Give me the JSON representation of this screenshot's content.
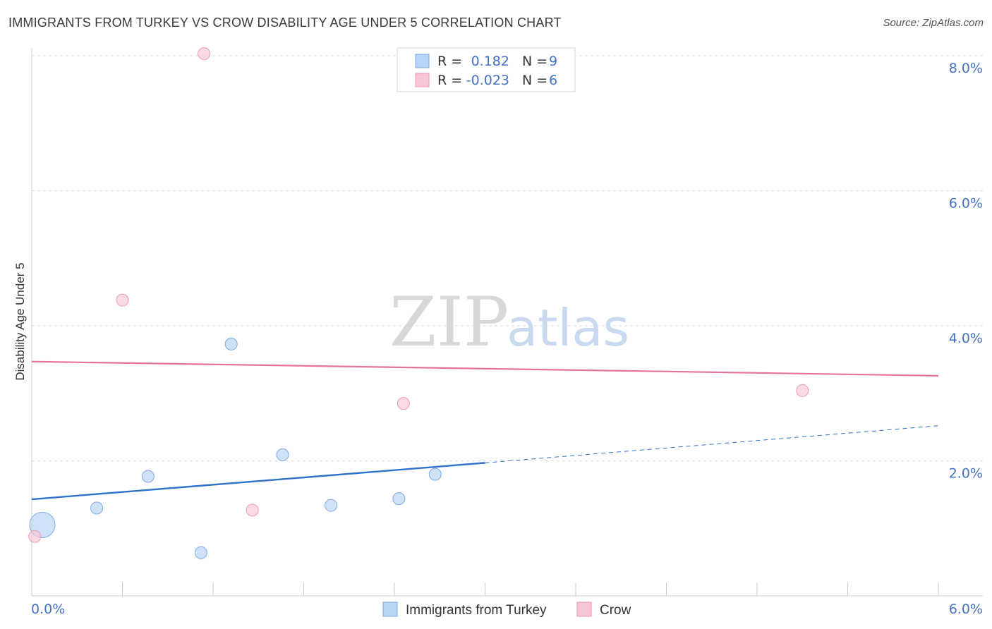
{
  "title": "IMMIGRANTS FROM TURKEY VS CROW DISABILITY AGE UNDER 5 CORRELATION CHART",
  "source": "Source: ZipAtlas.com",
  "watermark": {
    "zip": "ZIP",
    "atlas": "atlas"
  },
  "colors": {
    "blue_fill": "#b7d3f5",
    "blue_stroke": "#7fa9e0",
    "blue_line": "#2f72c9",
    "pink_fill": "#f8c7d6",
    "pink_stroke": "#ee9ab4",
    "pink_line": "#e8739a",
    "grid": "#dddddd",
    "tick_text": "#4472c4"
  },
  "legend": {
    "rows": [
      {
        "r_label": "R =",
        "r_value": "0.182",
        "n_label": "N =",
        "n_value": "9"
      },
      {
        "r_label": "R =",
        "r_value": "-0.023",
        "n_label": "N =",
        "n_value": "6"
      }
    ]
  },
  "bottom_legend": [
    "Immigrants from Turkey",
    "Crow"
  ],
  "chart_data": {
    "type": "scatter",
    "title": "IMMIGRANTS FROM TURKEY VS CROW DISABILITY AGE UNDER 5 CORRELATION CHART",
    "xlabel": "",
    "ylabel": "Disability Age Under 5",
    "xlim": [
      0,
      6
    ],
    "ylim": [
      0,
      8.3
    ],
    "x_tick_labels": [
      "0.0%",
      "6.0%"
    ],
    "y_ticks": [
      {
        "value": 2,
        "label": "2.0%"
      },
      {
        "value": 4,
        "label": "4.0%"
      },
      {
        "value": 6,
        "label": "6.0%"
      },
      {
        "value": 8,
        "label": "8.0%"
      }
    ],
    "series": [
      {
        "name": "Immigrants from Turkey",
        "color": "#b7d3f5",
        "r": 0.182,
        "n": 9,
        "points": [
          {
            "x": 0.07,
            "y": 1.05,
            "size": "large"
          },
          {
            "x": 0.43,
            "y": 1.3
          },
          {
            "x": 0.77,
            "y": 1.77
          },
          {
            "x": 1.12,
            "y": 0.64
          },
          {
            "x": 1.32,
            "y": 3.73
          },
          {
            "x": 1.66,
            "y": 2.09
          },
          {
            "x": 1.98,
            "y": 1.34
          },
          {
            "x": 2.43,
            "y": 1.44
          },
          {
            "x": 2.67,
            "y": 1.8
          }
        ],
        "trend": {
          "x0": 0,
          "y0": 1.43,
          "x1": 3.0,
          "y1": 1.97,
          "dashed_to_x": 6.0,
          "dashed_to_y": 2.52
        }
      },
      {
        "name": "Crow",
        "color": "#f8c7d6",
        "r": -0.023,
        "n": 6,
        "points": [
          {
            "x": 0.02,
            "y": 0.88
          },
          {
            "x": 0.6,
            "y": 4.38
          },
          {
            "x": 1.14,
            "y": 8.03
          },
          {
            "x": 1.46,
            "y": 1.27
          },
          {
            "x": 2.46,
            "y": 2.85
          },
          {
            "x": 5.1,
            "y": 3.04
          }
        ],
        "trend": {
          "x0": 0,
          "y0": 3.47,
          "x1": 6.0,
          "y1": 3.26
        }
      }
    ]
  }
}
